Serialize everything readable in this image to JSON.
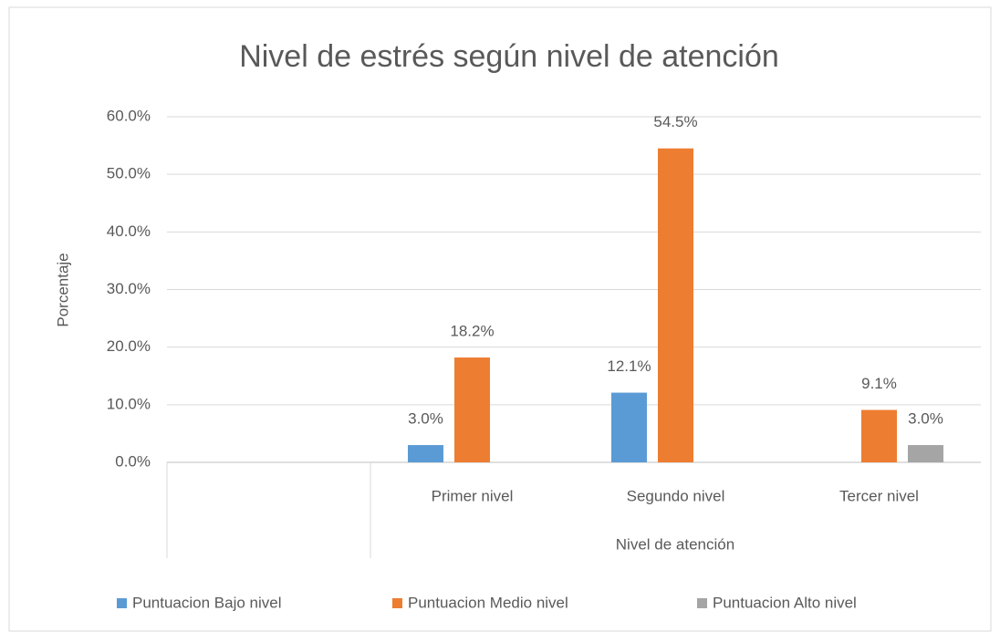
{
  "chart_data": {
    "type": "bar",
    "title": "Nivel de estrés según nivel de atención",
    "y_label": "Porcentaje",
    "x_label": "Nivel de atención",
    "categories": [
      null,
      "Primer nivel",
      "Segundo nivel",
      "Tercer nivel"
    ],
    "series": [
      {
        "name": "Puntuacion Bajo nivel",
        "color": "#5b9bd5",
        "values": [
          null,
          3.0,
          12.1,
          null
        ],
        "value_labels": [
          null,
          "3.0%",
          "12.1%",
          null
        ]
      },
      {
        "name": "Puntuacion Medio nivel",
        "color": "#ed7d31",
        "values": [
          null,
          18.2,
          54.5,
          9.1
        ],
        "value_labels": [
          null,
          "18.2%",
          "54.5%",
          "9.1%"
        ]
      },
      {
        "name": "Puntuacion Alto nivel",
        "color": "#a5a5a5",
        "values": [
          null,
          null,
          null,
          3.0
        ],
        "value_labels": [
          null,
          null,
          null,
          "3.0%"
        ]
      }
    ],
    "ylim": [
      0,
      60
    ],
    "yticks": [
      {
        "value": 0,
        "label": "0.0%"
      },
      {
        "value": 10,
        "label": "10.0%"
      },
      {
        "value": 20,
        "label": "20.0%"
      },
      {
        "value": 30,
        "label": "30.0%"
      },
      {
        "value": 40,
        "label": "40.0%"
      },
      {
        "value": 50,
        "label": "50.0%"
      },
      {
        "value": 60,
        "label": "60.0%"
      }
    ],
    "grid": true,
    "legend": "bottom"
  }
}
